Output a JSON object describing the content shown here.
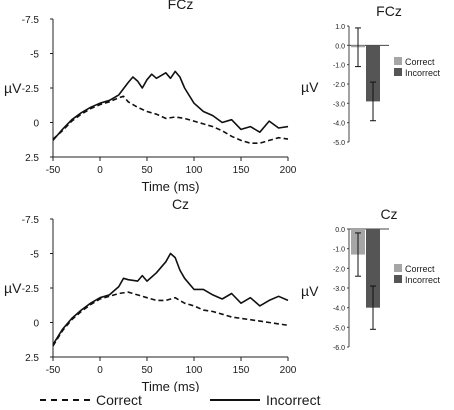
{
  "colors": {
    "correct_bar": "#a6a6a6",
    "incorrect_bar": "#555555",
    "line": "#111111"
  },
  "bottom_legend": {
    "correct_label": "Correct",
    "incorrect_label": "Incorrect"
  },
  "chart_data": [
    {
      "type": "line",
      "title": "FCz",
      "xlabel": "Time (ms)",
      "ylabel": "µV",
      "xlim": [
        -50,
        200
      ],
      "ylim": [
        -7.5,
        2.5
      ],
      "y_inverted": true,
      "x_ticks": [
        -50,
        0,
        50,
        100,
        150,
        200
      ],
      "y_ticks": [
        -7.5,
        -5,
        -2.5,
        0,
        2.5
      ],
      "y_tick_labels": [
        "-7.5",
        "-5",
        "-2.5",
        "0",
        "2.5"
      ],
      "series": [
        {
          "name": "Correct",
          "style": "dashed",
          "x": [
            -50,
            -40,
            -30,
            -20,
            -10,
            0,
            10,
            20,
            25,
            30,
            40,
            50,
            60,
            70,
            80,
            90,
            100,
            110,
            120,
            130,
            140,
            150,
            160,
            170,
            180,
            190,
            200
          ],
          "y": [
            1.2,
            0.6,
            -0.1,
            -0.6,
            -1.0,
            -1.3,
            -1.5,
            -1.8,
            -1.9,
            -1.5,
            -1.1,
            -0.8,
            -0.6,
            -0.3,
            -0.4,
            -0.3,
            -0.1,
            0.1,
            0.3,
            0.6,
            1.0,
            1.3,
            1.5,
            1.5,
            1.3,
            1.1,
            1.2
          ]
        },
        {
          "name": "Incorrect",
          "style": "solid",
          "x": [
            -50,
            -40,
            -30,
            -20,
            -10,
            0,
            10,
            20,
            30,
            35,
            40,
            45,
            50,
            55,
            60,
            65,
            70,
            75,
            80,
            85,
            90,
            100,
            110,
            120,
            130,
            140,
            150,
            160,
            170,
            180,
            190,
            200
          ],
          "y": [
            1.3,
            0.5,
            -0.2,
            -0.7,
            -1.1,
            -1.4,
            -1.6,
            -2.0,
            -2.9,
            -3.3,
            -3.0,
            -2.5,
            -3.1,
            -3.5,
            -3.2,
            -3.4,
            -3.6,
            -3.2,
            -3.7,
            -3.3,
            -2.5,
            -1.4,
            -0.8,
            -0.5,
            0.0,
            -0.2,
            0.5,
            0.3,
            0.7,
            -0.1,
            0.4,
            0.3
          ]
        }
      ]
    },
    {
      "type": "bar",
      "title": "FCz",
      "ylabel": "µV",
      "ylim": [
        -5.0,
        1.0
      ],
      "y_ticks": [
        1.0,
        0.0,
        -1.0,
        -2.0,
        -3.0,
        -4.0,
        -5.0
      ],
      "y_tick_labels": [
        "1.0",
        "0.0",
        "-1.0",
        "-2.0",
        "-3.0",
        "-4.0",
        "-5.0"
      ],
      "legend_position": "right",
      "series": [
        {
          "name": "Correct",
          "value": -0.1,
          "error": 1.0
        },
        {
          "name": "Incorrect",
          "value": -2.9,
          "error": 1.0
        }
      ]
    },
    {
      "type": "line",
      "title": "Cz",
      "xlabel": "Time (ms)",
      "ylabel": "µV",
      "xlim": [
        -50,
        200
      ],
      "ylim": [
        -7.5,
        2.5
      ],
      "y_inverted": true,
      "x_ticks": [
        -50,
        0,
        50,
        100,
        150,
        200
      ],
      "y_ticks": [
        -7.5,
        -5,
        -2.5,
        0,
        2.5
      ],
      "y_tick_labels": [
        "-7.5",
        "-5",
        "-2.5",
        "0",
        "2.5"
      ],
      "series": [
        {
          "name": "Correct",
          "style": "dashed",
          "x": [
            -50,
            -40,
            -30,
            -20,
            -10,
            0,
            10,
            20,
            30,
            40,
            50,
            60,
            70,
            80,
            90,
            100,
            110,
            120,
            130,
            140,
            150,
            160,
            170,
            180,
            190,
            200
          ],
          "y": [
            1.7,
            0.6,
            -0.2,
            -0.8,
            -1.3,
            -1.7,
            -1.9,
            -2.1,
            -2.2,
            -2.0,
            -1.8,
            -1.6,
            -1.6,
            -1.8,
            -1.4,
            -1.2,
            -0.9,
            -0.8,
            -0.6,
            -0.4,
            -0.3,
            -0.2,
            -0.1,
            0.0,
            0.1,
            0.2
          ]
        },
        {
          "name": "Incorrect",
          "style": "solid",
          "x": [
            -50,
            -40,
            -30,
            -20,
            -10,
            0,
            10,
            20,
            25,
            30,
            40,
            45,
            50,
            55,
            60,
            65,
            70,
            75,
            80,
            85,
            90,
            100,
            110,
            120,
            130,
            140,
            150,
            160,
            170,
            180,
            190,
            200
          ],
          "y": [
            1.6,
            0.5,
            -0.3,
            -0.9,
            -1.4,
            -1.8,
            -2.0,
            -2.6,
            -3.2,
            -3.1,
            -3.0,
            -3.4,
            -3.0,
            -3.3,
            -3.6,
            -4.0,
            -4.4,
            -5.0,
            -4.7,
            -3.8,
            -3.2,
            -2.4,
            -2.4,
            -2.0,
            -1.7,
            -2.1,
            -1.4,
            -1.8,
            -1.2,
            -1.6,
            -1.9,
            -1.6
          ]
        }
      ]
    },
    {
      "type": "bar",
      "title": "Cz",
      "ylabel": "µV",
      "ylim": [
        -6.0,
        0.0
      ],
      "y_ticks": [
        0.0,
        -1.0,
        -2.0,
        -3.0,
        -4.0,
        -5.0,
        -6.0
      ],
      "y_tick_labels": [
        "0.0",
        "-1.0",
        "-2.0",
        "-3.0",
        "-4.0",
        "-5.0",
        "-6.0"
      ],
      "legend_position": "right",
      "series": [
        {
          "name": "Correct",
          "value": -1.3,
          "error": 1.1
        },
        {
          "name": "Incorrect",
          "value": -4.0,
          "error": 1.1
        }
      ]
    }
  ]
}
